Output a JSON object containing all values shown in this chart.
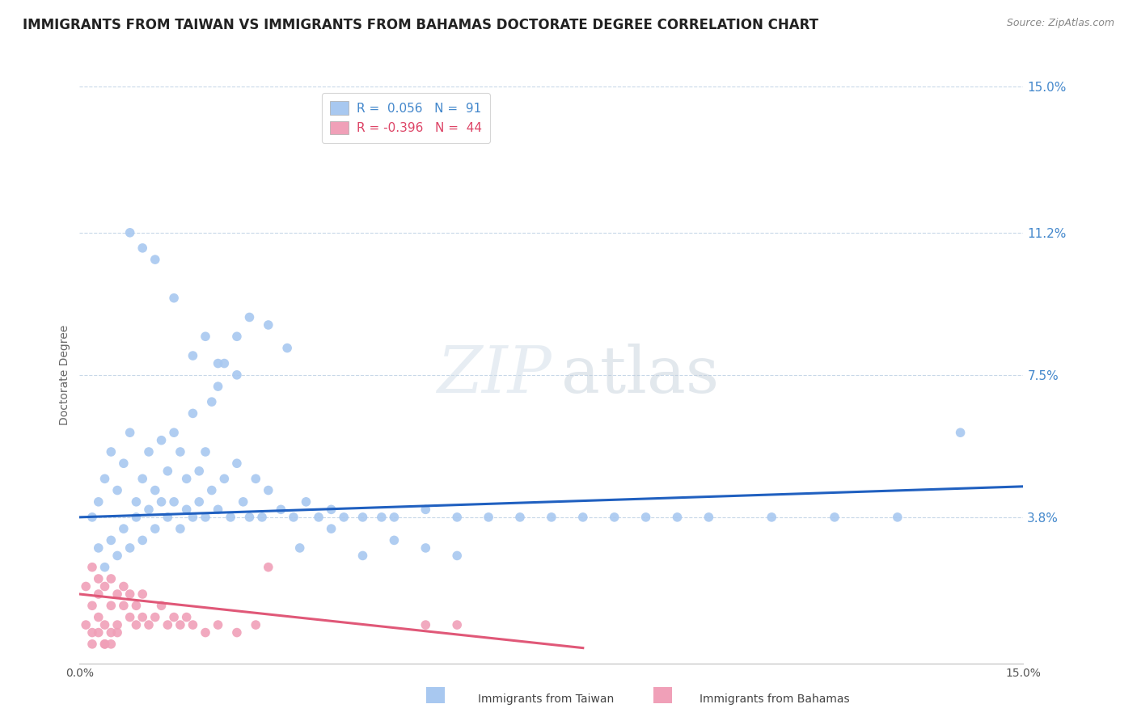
{
  "title": "IMMIGRANTS FROM TAIWAN VS IMMIGRANTS FROM BAHAMAS DOCTORATE DEGREE CORRELATION CHART",
  "source": "Source: ZipAtlas.com",
  "ylabel_label": "Doctorate Degree",
  "xlim": [
    0.0,
    0.15
  ],
  "ylim": [
    0.0,
    0.15
  ],
  "xtick_labels": [
    "0.0%",
    "15.0%"
  ],
  "xtick_positions": [
    0.0,
    0.15
  ],
  "ytick_labels": [
    "3.8%",
    "7.5%",
    "11.2%",
    "15.0%"
  ],
  "ytick_positions": [
    0.038,
    0.075,
    0.112,
    0.15
  ],
  "grid_color": "#c8d8e8",
  "background_color": "#ffffff",
  "taiwan_color": "#a8c8f0",
  "bahamas_color": "#f0a0b8",
  "taiwan_line_color": "#2060c0",
  "bahamas_line_color": "#e05878",
  "legend_taiwan_R": "0.056",
  "legend_taiwan_N": "91",
  "legend_bahamas_R": "-0.396",
  "legend_bahamas_N": "44",
  "legend_label_taiwan": "Immigrants from Taiwan",
  "legend_label_bahamas": "Immigrants from Bahamas",
  "taiwan_scatter_x": [
    0.002,
    0.003,
    0.003,
    0.004,
    0.004,
    0.005,
    0.005,
    0.006,
    0.006,
    0.007,
    0.007,
    0.008,
    0.008,
    0.009,
    0.009,
    0.01,
    0.01,
    0.011,
    0.011,
    0.012,
    0.012,
    0.013,
    0.013,
    0.014,
    0.014,
    0.015,
    0.015,
    0.016,
    0.016,
    0.017,
    0.017,
    0.018,
    0.018,
    0.019,
    0.019,
    0.02,
    0.02,
    0.021,
    0.022,
    0.023,
    0.024,
    0.025,
    0.026,
    0.027,
    0.028,
    0.029,
    0.03,
    0.032,
    0.034,
    0.036,
    0.038,
    0.04,
    0.042,
    0.045,
    0.048,
    0.05,
    0.055,
    0.06,
    0.065,
    0.07,
    0.075,
    0.08,
    0.085,
    0.09,
    0.095,
    0.1,
    0.11,
    0.12,
    0.13,
    0.14,
    0.021,
    0.022,
    0.023,
    0.025,
    0.027,
    0.03,
    0.033,
    0.015,
    0.018,
    0.02,
    0.022,
    0.025,
    0.035,
    0.04,
    0.045,
    0.05,
    0.055,
    0.06,
    0.008,
    0.01,
    0.012
  ],
  "taiwan_scatter_y": [
    0.038,
    0.03,
    0.042,
    0.025,
    0.048,
    0.032,
    0.055,
    0.028,
    0.045,
    0.035,
    0.052,
    0.03,
    0.06,
    0.042,
    0.038,
    0.048,
    0.032,
    0.055,
    0.04,
    0.045,
    0.035,
    0.058,
    0.042,
    0.038,
    0.05,
    0.042,
    0.06,
    0.035,
    0.055,
    0.048,
    0.04,
    0.038,
    0.065,
    0.042,
    0.05,
    0.038,
    0.055,
    0.045,
    0.04,
    0.048,
    0.038,
    0.052,
    0.042,
    0.038,
    0.048,
    0.038,
    0.045,
    0.04,
    0.038,
    0.042,
    0.038,
    0.04,
    0.038,
    0.038,
    0.038,
    0.038,
    0.04,
    0.038,
    0.038,
    0.038,
    0.038,
    0.038,
    0.038,
    0.038,
    0.038,
    0.038,
    0.038,
    0.038,
    0.038,
    0.06,
    0.068,
    0.072,
    0.078,
    0.085,
    0.09,
    0.088,
    0.082,
    0.095,
    0.08,
    0.085,
    0.078,
    0.075,
    0.03,
    0.035,
    0.028,
    0.032,
    0.03,
    0.028,
    0.112,
    0.108,
    0.105
  ],
  "bahamas_scatter_x": [
    0.001,
    0.001,
    0.002,
    0.002,
    0.002,
    0.003,
    0.003,
    0.003,
    0.004,
    0.004,
    0.004,
    0.005,
    0.005,
    0.005,
    0.006,
    0.006,
    0.007,
    0.007,
    0.008,
    0.008,
    0.009,
    0.009,
    0.01,
    0.01,
    0.011,
    0.012,
    0.013,
    0.014,
    0.015,
    0.016,
    0.017,
    0.018,
    0.02,
    0.022,
    0.025,
    0.028,
    0.03,
    0.002,
    0.003,
    0.004,
    0.005,
    0.006,
    0.055,
    0.06
  ],
  "bahamas_scatter_y": [
    0.01,
    0.02,
    0.015,
    0.025,
    0.008,
    0.018,
    0.012,
    0.022,
    0.01,
    0.02,
    0.005,
    0.015,
    0.022,
    0.008,
    0.018,
    0.01,
    0.015,
    0.02,
    0.012,
    0.018,
    0.01,
    0.015,
    0.012,
    0.018,
    0.01,
    0.012,
    0.015,
    0.01,
    0.012,
    0.01,
    0.012,
    0.01,
    0.008,
    0.01,
    0.008,
    0.01,
    0.025,
    0.005,
    0.008,
    0.005,
    0.005,
    0.008,
    0.01,
    0.01
  ],
  "taiwan_trend_x": [
    0.0,
    0.15
  ],
  "taiwan_trend_y": [
    0.038,
    0.046
  ],
  "bahamas_trend_x": [
    0.0,
    0.08
  ],
  "bahamas_trend_y": [
    0.018,
    0.004
  ],
  "watermark_zip": "ZIP",
  "watermark_atlas": "atlas",
  "title_fontsize": 12,
  "axis_label_fontsize": 10,
  "tick_fontsize": 10,
  "legend_fontsize": 11,
  "ytick_color": "#4488cc",
  "title_color": "#222222",
  "source_color": "#888888"
}
